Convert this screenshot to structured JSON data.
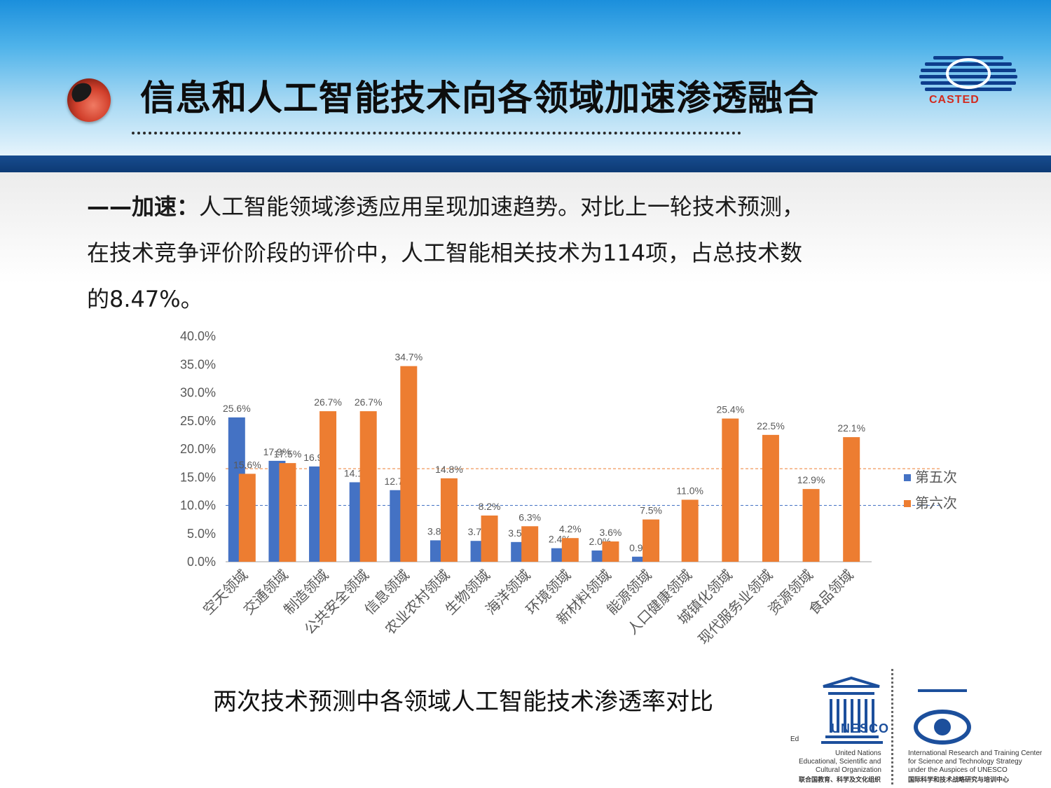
{
  "slide": {
    "title": "信息和人工智能技术向各领域加速渗透融合",
    "logo_text": "CASTED",
    "paragraph_lead": "——加速：",
    "paragraph_line1": "人工智能领域渗透应用呈现加速趋势。对比上一轮技术预测，",
    "paragraph_line2": "在技术竞争评价阶段的评价中，人工智能相关技术为114项，占总技术数",
    "paragraph_line3": "的8.47%。",
    "caption": "两次技术预测中各领域人工智能技术渗透率对比"
  },
  "footer": {
    "ed": "Ed",
    "un_line1": "United Nations",
    "un_line2": "Educational, Scientific and",
    "un_line3": "Cultural Organization",
    "un_cn": "联合国教育、科学及文化组织",
    "unesco_word": "UNESCO",
    "irtc_line1": "International Research and Training Center",
    "irtc_line2": "for Science and Technology Strategy",
    "irtc_line3": "under the Auspices of UNESCO",
    "irtc_cn": "国际科学和技术战略研究与培训中心"
  },
  "colors": {
    "series5": "#4472c4",
    "series6": "#ed7d31",
    "title_red": "#d22a1e",
    "header_blue": "#1b8fdc"
  },
  "chart_data": {
    "type": "bar",
    "title": "",
    "xlabel": "",
    "ylabel": "",
    "ylim": [
      0,
      40
    ],
    "yticks": [
      "0.0%",
      "5.0%",
      "10.0%",
      "15.0%",
      "20.0%",
      "25.0%",
      "30.0%",
      "35.0%",
      "40.0%"
    ],
    "legend_position": "right",
    "reference_lines": [
      {
        "series": "第五次",
        "value": 10.0
      },
      {
        "series": "第六次",
        "value": 16.5
      }
    ],
    "categories": [
      "空天领域",
      "交通领域",
      "制造领域",
      "公共安全领域",
      "信息领域",
      "农业农村领域",
      "生物领域",
      "海洋领域",
      "环境领域",
      "新材料领域",
      "能源领域",
      "人口健康领域",
      "城镇化领域",
      "现代服务业领域",
      "资源领域",
      "食品领域"
    ],
    "series": [
      {
        "name": "第五次",
        "values": [
          25.6,
          17.9,
          16.9,
          14.1,
          12.7,
          3.8,
          3.7,
          3.5,
          2.4,
          2.0,
          0.9,
          null,
          null,
          null,
          null,
          null
        ],
        "labels": [
          "25.6%",
          "17.9%",
          "16.9%",
          "14.1%",
          "12.7%",
          "3.8%",
          "3.7%",
          "3.5%",
          "2.4%",
          "2.0%",
          "0.9%",
          "",
          "",
          "",
          "",
          ""
        ]
      },
      {
        "name": "第六次",
        "values": [
          15.6,
          17.5,
          26.7,
          26.7,
          34.7,
          14.8,
          8.2,
          6.3,
          4.2,
          3.6,
          7.5,
          11.0,
          25.4,
          22.5,
          12.9,
          22.1
        ],
        "labels": [
          "15.6%",
          "17.5%",
          "26.7%",
          "26.7%",
          "34.7%",
          "14.8%",
          "8.2%",
          "6.3%",
          "4.2%",
          "3.6%",
          "7.5%",
          "11.0%",
          "25.4%",
          "22.5%",
          "12.9%",
          "22.1%"
        ]
      }
    ]
  }
}
